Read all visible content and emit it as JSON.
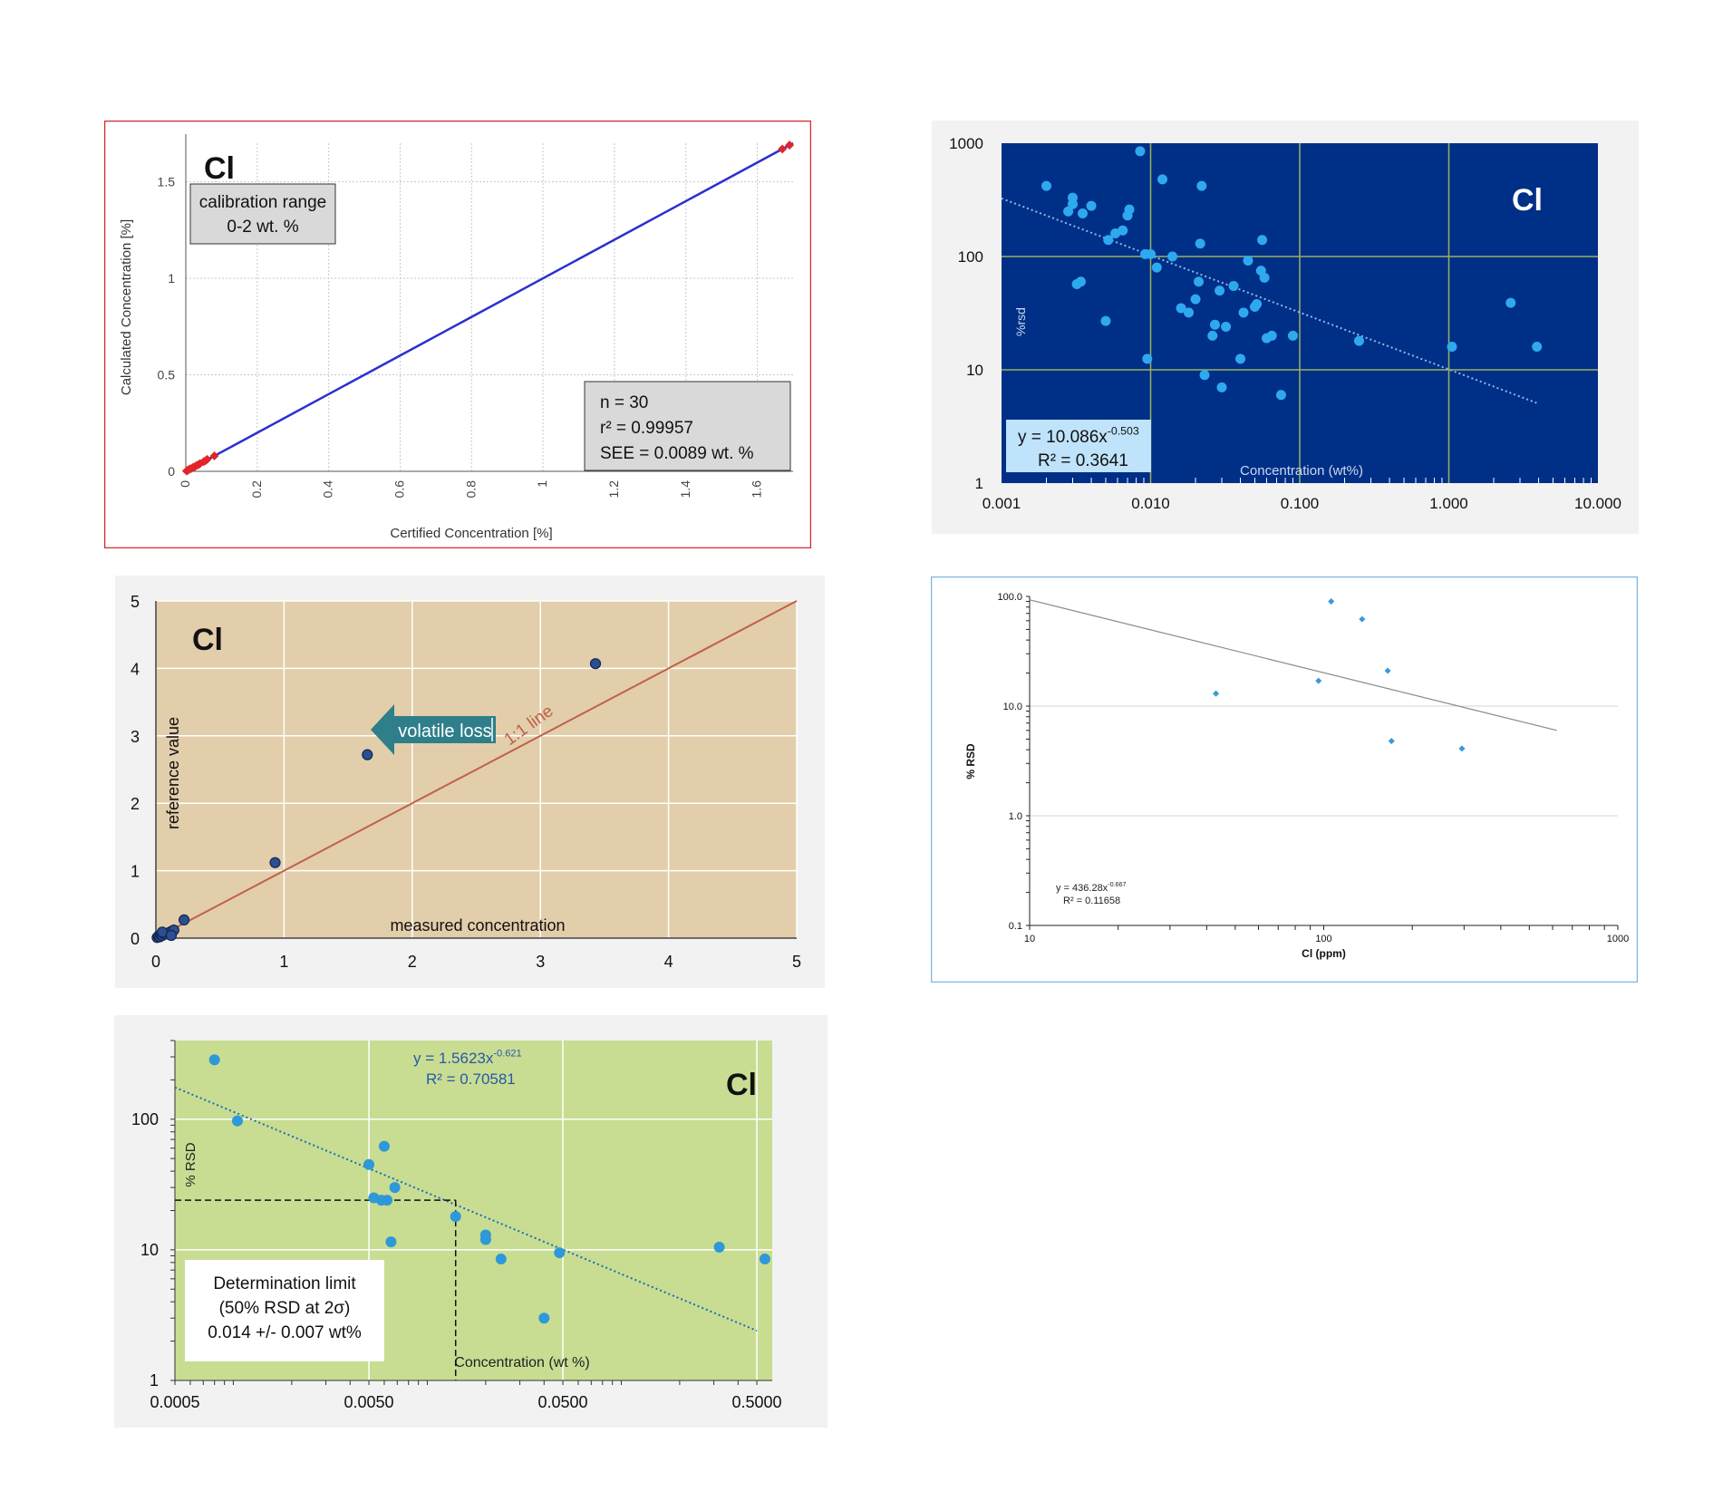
{
  "chart_data": [
    {
      "type": "line",
      "element": "Cl",
      "xlabel": "Certified Concentration [%]",
      "ylabel": "Calculated Concentration [%]",
      "xticks": [
        "0",
        "0.2",
        "0.4",
        "0.6",
        "0.8",
        "1",
        "1.2",
        "1.4",
        "1.6"
      ],
      "yticks": [
        "0",
        "0.5",
        "1",
        "1.5"
      ],
      "xlim": [
        0,
        1.7
      ],
      "ylim": [
        0,
        1.7
      ],
      "grid": true,
      "colors": {
        "line": "#2a2fd0",
        "points": "#e0262b",
        "border": "#d9262b"
      },
      "box1": {
        "line1": "calibration range",
        "line2": "0-2 wt. %"
      },
      "box2": {
        "line1": "n = 30",
        "line2": "r² = 0.99957",
        "line3": "SEE = 0.0089 wt. %"
      },
      "series": [
        {
          "name": "calibration line",
          "x": [
            0,
            1.7
          ],
          "y": [
            0,
            1.7
          ]
        },
        {
          "name": "standards",
          "x": [
            0.002,
            0.005,
            0.008,
            0.01,
            0.015,
            0.02,
            0.025,
            0.03,
            0.035,
            0.04,
            0.05,
            0.055,
            0.06,
            0.08,
            1.67,
            1.69
          ],
          "y": [
            0.002,
            0.005,
            0.008,
            0.012,
            0.014,
            0.02,
            0.024,
            0.03,
            0.034,
            0.04,
            0.05,
            0.055,
            0.062,
            0.08,
            1.67,
            1.69
          ]
        }
      ]
    },
    {
      "type": "scatter",
      "element": "Cl",
      "xlabel": "Concentration (wt%)",
      "ylabel": "%rsd",
      "xscale": "log",
      "yscale": "log",
      "xticks": [
        "0.001",
        "0.010",
        "0.100",
        "1.000",
        "10.000"
      ],
      "yticks": [
        "1",
        "10",
        "100",
        "1000"
      ],
      "xlim": [
        0.001,
        10
      ],
      "ylim": [
        1,
        1000
      ],
      "grid": true,
      "colors": {
        "plot_bg": "#002f87",
        "grid": "#9bb060",
        "points": "#2ea9f0",
        "trend": "#8fb8e8",
        "outer_bg": "#f2f2f2"
      },
      "equation": {
        "line1_base": "y = 10.086x",
        "line1_exp": "-0.503",
        "line2": "R² = 0.3641"
      },
      "trendline": {
        "a": 10.086,
        "b": -0.503,
        "x": [
          0.001,
          4
        ]
      },
      "points": {
        "x": [
          0.002,
          0.0028,
          0.003,
          0.003,
          0.0032,
          0.0035,
          0.004,
          0.0052,
          0.0058,
          0.0065,
          0.007,
          0.0072,
          0.0085,
          0.0095,
          0.01,
          0.011,
          0.012,
          0.014,
          0.016,
          0.018,
          0.02,
          0.021,
          0.022,
          0.023,
          0.026,
          0.027,
          0.029,
          0.03,
          0.032,
          0.036,
          0.04,
          0.042,
          0.045,
          0.05,
          0.055,
          0.056,
          0.058,
          0.06,
          0.065,
          0.075,
          0.09,
          0.25,
          1.05,
          2.6,
          3.9,
          0.005,
          0.0034,
          0.0092,
          0.0215,
          0.0515
        ],
        "y": [
          420,
          250,
          290,
          330,
          57,
          240,
          280,
          140,
          160,
          170,
          230,
          260,
          850,
          12.5,
          105,
          80,
          480,
          100,
          35,
          32,
          42,
          60,
          420,
          9,
          20,
          25,
          50,
          7,
          24,
          55,
          12.5,
          32,
          92,
          36,
          75,
          140,
          65,
          19,
          20,
          6,
          20,
          18,
          16,
          39,
          16,
          27,
          60,
          105,
          130,
          38
        ]
      }
    },
    {
      "type": "scatter",
      "element": "Cl",
      "xlabel": "measured concentration",
      "ylabel": "reference value",
      "xticks": [
        "0",
        "1",
        "2",
        "3",
        "4",
        "5"
      ],
      "yticks": [
        "0",
        "1",
        "2",
        "3",
        "4",
        "5"
      ],
      "xlim": [
        0,
        5
      ],
      "ylim": [
        0,
        5
      ],
      "grid": true,
      "colors": {
        "plot_bg": "#e3ceab",
        "line": "#c0604a",
        "points": "#2b4f93",
        "arrow": "#2e7f8a",
        "outer_bg": "#f2f2f2"
      },
      "line_label": "1:1 line",
      "arrow_label": "volatile loss",
      "points": {
        "x": [
          0.01,
          0.02,
          0.03,
          0.04,
          0.05,
          0.06,
          0.08,
          0.1,
          0.12,
          0.14,
          0.22,
          0.93,
          1.65,
          3.43,
          0.05,
          0.12
        ],
        "y": [
          0.01,
          0.03,
          0.02,
          0.05,
          0.04,
          0.07,
          0.06,
          0.08,
          0.1,
          0.12,
          0.27,
          1.12,
          2.72,
          4.07,
          0.09,
          0.04
        ]
      }
    },
    {
      "type": "scatter",
      "xlabel": "Cl (ppm)",
      "ylabel": "% RSD",
      "xscale": "log",
      "yscale": "log",
      "xticks": [
        "10",
        "100",
        "1000"
      ],
      "yticks": [
        "0.1",
        "1.0",
        "10.0",
        "100.0"
      ],
      "xlim": [
        10,
        1000
      ],
      "ylim": [
        0.1,
        100
      ],
      "grid": true,
      "colors": {
        "points": "#3a9ad8",
        "trend": "#8a8a8a",
        "border": "#7fb4e0"
      },
      "equation": {
        "line1_base": "y = 436.28x",
        "line1_exp": "-0.667",
        "line2": "R² = 0.11658"
      },
      "trendline": {
        "x": [
          10,
          620
        ],
        "y": [
          93,
          6
        ]
      },
      "points": {
        "x": [
          43,
          96,
          106,
          135,
          165,
          170,
          295
        ],
        "y": [
          13,
          17,
          90,
          62,
          21,
          4.8,
          4.1
        ]
      }
    },
    {
      "type": "scatter",
      "element": "Cl",
      "xlabel": "Concentration (wt %)",
      "ylabel": "% RSD",
      "xscale": "log",
      "yscale": "log",
      "xticks": [
        "0.0005",
        "0.0050",
        "0.0500",
        "0.5000"
      ],
      "yticks": [
        "1",
        "10",
        "100"
      ],
      "xlim": [
        0.0005,
        0.6
      ],
      "ylim": [
        1,
        400
      ],
      "grid": true,
      "colors": {
        "plot_bg": "#c8dd92",
        "points": "#2e98d8",
        "trend": "#1a6cb8",
        "equation": "#2a58a8",
        "outer_bg": "#f2f2f2"
      },
      "equation": {
        "line1_base": "y = 1.5623x",
        "line1_exp": "-0.621",
        "line2": "R² = 0.70581"
      },
      "trendline": {
        "a": 1.5623,
        "b": -0.621,
        "x": [
          0.0005,
          0.5
        ]
      },
      "determination": {
        "line1": "Determination limit",
        "line2": "(50% RSD at 2σ)",
        "line3": "0.014 +/- 0.007 wt%",
        "x": 0.014,
        "y": 24
      },
      "points": {
        "x": [
          0.0008,
          0.00105,
          0.005,
          0.0053,
          0.0058,
          0.006,
          0.0062,
          0.0065,
          0.0068,
          0.014,
          0.02,
          0.02,
          0.024,
          0.04,
          0.048,
          0.32,
          0.55
        ],
        "y": [
          285,
          97,
          45,
          25,
          24,
          62,
          24,
          11.5,
          30,
          18,
          13,
          12,
          8.5,
          3,
          9.5,
          10.5,
          8.5
        ]
      }
    }
  ]
}
